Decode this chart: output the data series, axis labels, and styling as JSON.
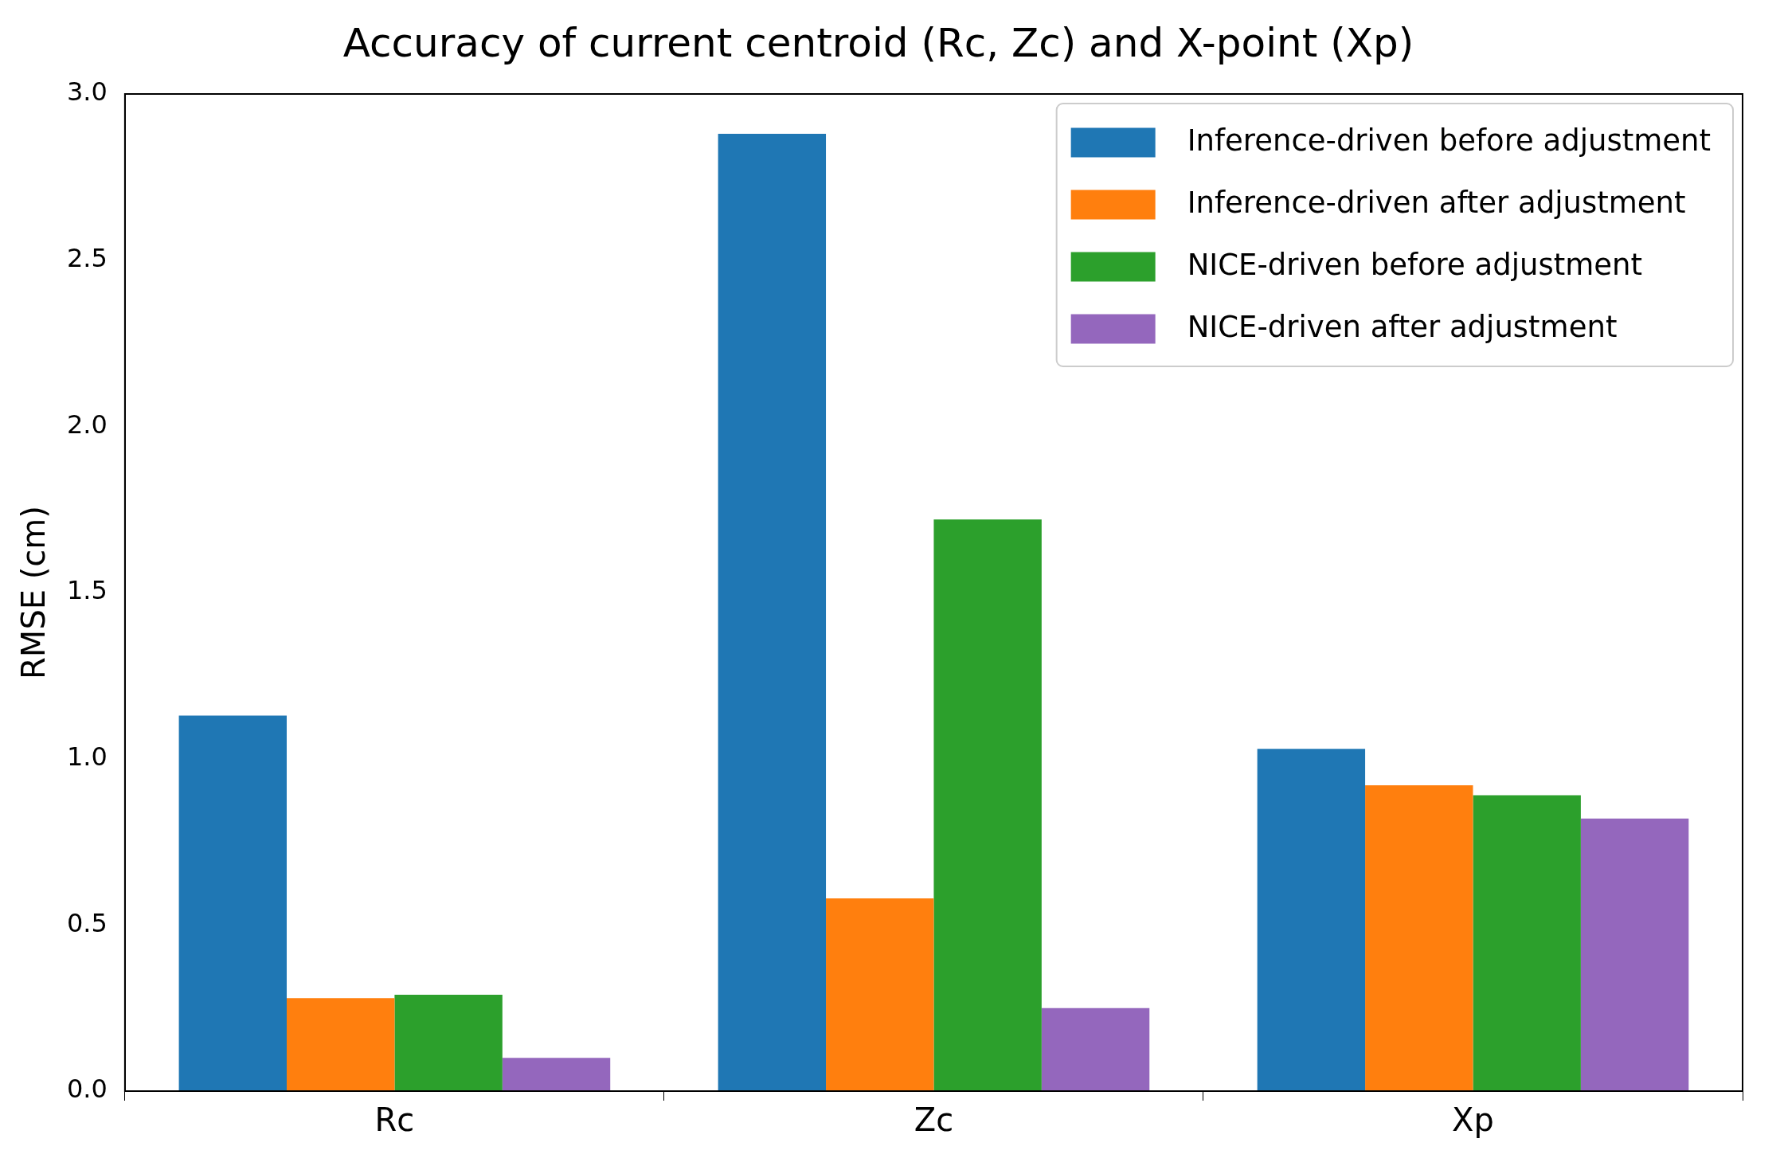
{
  "chart_data": {
    "type": "bar",
    "title": "Accuracy of current centroid (Rc, Zc) and X-point (Xp)",
    "ylabel": "RMSE (cm)",
    "categories": [
      "Rc",
      "Zc",
      "Xp"
    ],
    "series": [
      {
        "name": "Inference-driven before adjustment",
        "color": "#1f77b4",
        "values": [
          1.13,
          2.88,
          1.03
        ]
      },
      {
        "name": "Inference-driven after adjustment",
        "color": "#ff7f0e",
        "values": [
          0.28,
          0.58,
          0.92
        ]
      },
      {
        "name": "NICE-driven before adjustment",
        "color": "#2ca02c",
        "values": [
          0.29,
          1.72,
          0.89
        ]
      },
      {
        "name": "NICE-driven after adjustment",
        "color": "#9467bd",
        "values": [
          0.1,
          0.25,
          0.82
        ]
      }
    ],
    "ylim": [
      0,
      3
    ],
    "yticks": [
      {
        "value": 0,
        "label": "0.0"
      },
      {
        "value": 0.5,
        "label": "0.5"
      },
      {
        "value": 1,
        "label": "1.0"
      },
      {
        "value": 1.5,
        "label": "1.5"
      },
      {
        "value": 2,
        "label": "2.0"
      },
      {
        "value": 2.5,
        "label": "2.5"
      },
      {
        "value": 3,
        "label": "3.0"
      }
    ],
    "grid": false,
    "legend": "top right"
  }
}
